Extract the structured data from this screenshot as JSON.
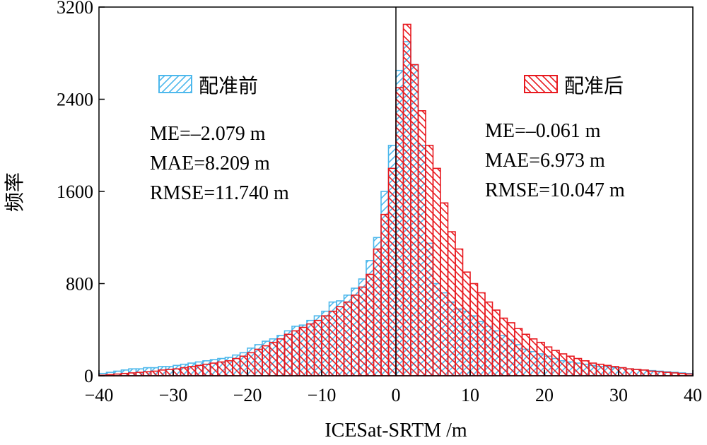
{
  "chart_data": {
    "type": "bar",
    "title": "",
    "xlabel": "ICESat-SRTM /m",
    "ylabel": "频率",
    "xlim": [
      -40,
      40
    ],
    "ylim": [
      0,
      3200
    ],
    "xticks": [
      -40,
      -30,
      -20,
      -10,
      0,
      10,
      20,
      30,
      40
    ],
    "yticks": [
      0,
      800,
      1600,
      2400,
      3200
    ],
    "xtick_labels": [
      "−40",
      "−30",
      "−20",
      "−10",
      "0",
      "10",
      "20",
      "30",
      "40"
    ],
    "ytick_labels": [
      "0",
      "800",
      "1600",
      "2400",
      "3200"
    ],
    "bin_width": 1,
    "bin_start": -40,
    "grid": false,
    "series": [
      {
        "name": "配准前",
        "color": "#4db8ec",
        "hatch": "forward",
        "values": [
          20,
          30,
          40,
          50,
          60,
          60,
          70,
          70,
          80,
          80,
          90,
          100,
          110,
          120,
          130,
          140,
          150,
          160,
          180,
          200,
          240,
          270,
          300,
          320,
          350,
          390,
          430,
          440,
          480,
          520,
          560,
          640,
          650,
          700,
          760,
          840,
          1000,
          1200,
          1600,
          2000,
          2650,
          2900,
          2700,
          2000,
          1150,
          800,
          720,
          640,
          580,
          560,
          520,
          470,
          430,
          390,
          350,
          310,
          270,
          230,
          210,
          190,
          170,
          150,
          130,
          120,
          110,
          100,
          90,
          80,
          80,
          70,
          70,
          60,
          55,
          50,
          45,
          40,
          35,
          30,
          25,
          20
        ]
      },
      {
        "name": "配准后",
        "color": "#e8191f",
        "hatch": "backward",
        "values": [
          5,
          10,
          15,
          20,
          25,
          30,
          35,
          40,
          50,
          55,
          60,
          70,
          80,
          90,
          100,
          110,
          120,
          130,
          150,
          170,
          200,
          230,
          260,
          290,
          320,
          360,
          390,
          420,
          450,
          480,
          520,
          560,
          600,
          640,
          700,
          770,
          880,
          1100,
          1400,
          1800,
          2500,
          3050,
          2700,
          2300,
          2000,
          1800,
          1500,
          1250,
          1100,
          900,
          800,
          720,
          640,
          570,
          500,
          460,
          410,
          360,
          320,
          290,
          250,
          220,
          190,
          170,
          150,
          130,
          110,
          100,
          90,
          80,
          70,
          60,
          55,
          50,
          40,
          35,
          30,
          25,
          20,
          15
        ]
      }
    ],
    "annotations": {
      "before": [
        "ME=–2.079 m",
        "MAE=8.209 m",
        "RMSE=11.740 m"
      ],
      "after": [
        "ME=–0.061 m",
        "MAE=6.973 m",
        "RMSE=10.047 m"
      ]
    },
    "legend": [
      "配准前",
      "配准后"
    ]
  }
}
